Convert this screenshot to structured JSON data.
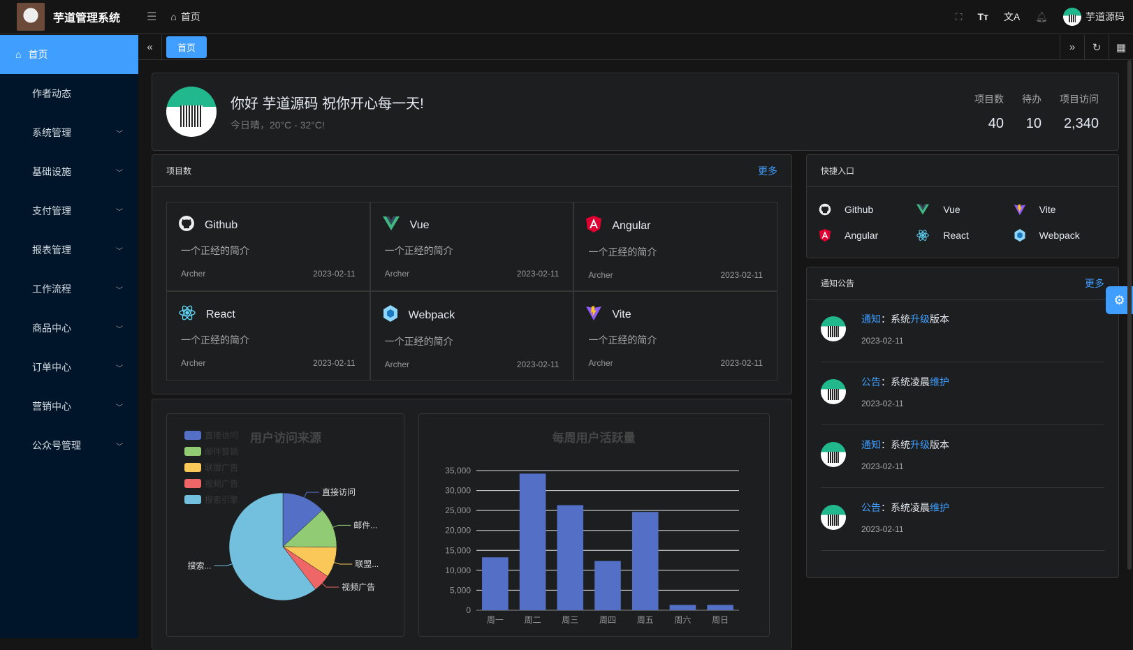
{
  "header": {
    "app_title": "芋道管理系统",
    "breadcrumb": "首页",
    "username": "芋道源码",
    "icons": [
      "fullscreen-icon",
      "font-size-icon",
      "translate-icon",
      "bell-icon"
    ]
  },
  "sidebar": {
    "items": [
      {
        "label": "首页",
        "active": true
      },
      {
        "label": "作者动态"
      },
      {
        "label": "系统管理",
        "expandable": true
      },
      {
        "label": "基础设施",
        "expandable": true
      },
      {
        "label": "支付管理",
        "expandable": true
      },
      {
        "label": "报表管理",
        "expandable": true
      },
      {
        "label": "工作流程",
        "expandable": true
      },
      {
        "label": "商品中心",
        "expandable": true
      },
      {
        "label": "订单中心",
        "expandable": true
      },
      {
        "label": "营销中心",
        "expandable": true
      },
      {
        "label": "公众号管理",
        "expandable": true
      }
    ]
  },
  "tabs": {
    "items": [
      "首页"
    ]
  },
  "welcome": {
    "greeting": "你好 芋道源码 祝你开心每一天!",
    "weather": "今日晴，20°C - 32°C!",
    "stats": [
      {
        "label": "项目数",
        "value": "40"
      },
      {
        "label": "待办",
        "value": "10"
      },
      {
        "label": "项目访问",
        "value": "2,340"
      }
    ]
  },
  "projects": {
    "title": "项目数",
    "more": "更多",
    "items": [
      {
        "name": "Github",
        "icon": "github",
        "desc": "一个正经的简介",
        "author": "Archer",
        "date": "2023-02-11"
      },
      {
        "name": "Vue",
        "icon": "vue",
        "desc": "一个正经的简介",
        "author": "Archer",
        "date": "2023-02-11"
      },
      {
        "name": "Angular",
        "icon": "angular",
        "desc": "一个正经的简介",
        "author": "Archer",
        "date": "2023-02-11"
      },
      {
        "name": "React",
        "icon": "react",
        "desc": "一个正经的简介",
        "author": "Archer",
        "date": "2023-02-11"
      },
      {
        "name": "Webpack",
        "icon": "webpack",
        "desc": "一个正经的简介",
        "author": "Archer",
        "date": "2023-02-11"
      },
      {
        "name": "Vite",
        "icon": "vite",
        "desc": "一个正经的简介",
        "author": "Archer",
        "date": "2023-02-11"
      }
    ]
  },
  "quick": {
    "title": "快捷入口",
    "items": [
      {
        "name": "Github",
        "icon": "github"
      },
      {
        "name": "Vue",
        "icon": "vue"
      },
      {
        "name": "Vite",
        "icon": "vite"
      },
      {
        "name": "Angular",
        "icon": "angular"
      },
      {
        "name": "React",
        "icon": "react"
      },
      {
        "name": "Webpack",
        "icon": "webpack"
      }
    ]
  },
  "notice": {
    "title": "通知公告",
    "more": "更多",
    "items": [
      {
        "type": "通知",
        "sep": "：",
        "pre": "系统",
        "key": "升级",
        "post": "版本",
        "date": "2023-02-11"
      },
      {
        "type": "公告",
        "sep": "：",
        "pre": "系统凌晨",
        "key": "维护",
        "post": "",
        "date": "2023-02-11"
      },
      {
        "type": "通知",
        "sep": "：",
        "pre": "系统",
        "key": "升级",
        "post": "版本",
        "date": "2023-02-11"
      },
      {
        "type": "公告",
        "sep": "：",
        "pre": "系统凌晨",
        "key": "维护",
        "post": "",
        "date": "2023-02-11"
      }
    ]
  },
  "chart_data": [
    {
      "type": "pie",
      "title": "用户访问来源",
      "legend_position": "top-left",
      "categories": [
        "直接访问",
        "邮件营销",
        "联盟广告",
        "视频广告",
        "搜索引擎"
      ],
      "slice_labels": [
        "直接访问",
        "邮件...",
        "联盟...",
        "视频广告",
        "搜索..."
      ],
      "values": [
        335,
        310,
        234,
        135,
        1548
      ],
      "colors": [
        "#5470c6",
        "#91cc75",
        "#fac858",
        "#ee6666",
        "#73c0de"
      ]
    },
    {
      "type": "bar",
      "title": "每周用户活跃量",
      "categories": [
        "周一",
        "周二",
        "周三",
        "周四",
        "周五",
        "周六",
        "周日"
      ],
      "values": [
        13253,
        34235,
        26321,
        12340,
        24643,
        1322,
        1324
      ],
      "ylim": [
        0,
        35000
      ],
      "yticks": [
        "0",
        "5,000",
        "10,000",
        "15,000",
        "20,000",
        "25,000",
        "30,000",
        "35,000"
      ],
      "grid": true,
      "color": "#5470c6"
    }
  ]
}
